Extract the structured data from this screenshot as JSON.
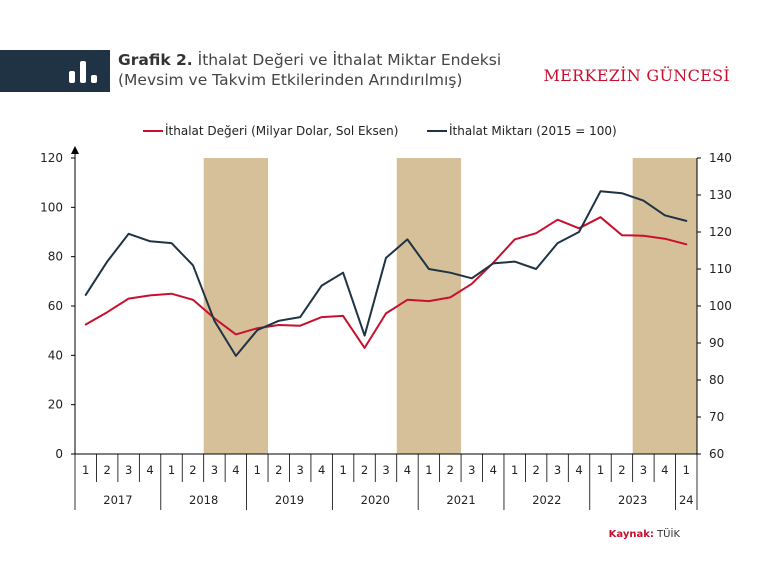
{
  "header": {
    "title_bold": "Grafik 2.",
    "title_line1": "İthalat Değeri ve İthalat Miktar Endeksi",
    "title_line2": "(Mevsim ve Takvim Etkilerinden Arındırılmış)",
    "brand": "MERKEZİN GÜNCESİ",
    "icon": "bar-chart-icon"
  },
  "source": {
    "label": "Kaynak:",
    "value": "TÜİK"
  },
  "colors": {
    "series1": "#c8102e",
    "series2": "#1f3344",
    "shade": "#d6c09a",
    "header_bg": "#1f3344"
  },
  "chart_data": {
    "type": "line",
    "title": "İthalat Değeri ve İthalat Miktar Endeksi",
    "x_quarters": [
      "1",
      "2",
      "3",
      "4",
      "1",
      "2",
      "3",
      "4",
      "1",
      "2",
      "3",
      "4",
      "1",
      "2",
      "3",
      "4",
      "1",
      "2",
      "3",
      "4",
      "1",
      "2",
      "3",
      "4",
      "1",
      "2",
      "3",
      "4",
      "1"
    ],
    "x_years": [
      {
        "label": "2017",
        "start": 0,
        "end": 3
      },
      {
        "label": "2018",
        "start": 4,
        "end": 7
      },
      {
        "label": "2019",
        "start": 8,
        "end": 11
      },
      {
        "label": "2020",
        "start": 12,
        "end": 15
      },
      {
        "label": "2021",
        "start": 16,
        "end": 19
      },
      {
        "label": "2022",
        "start": 20,
        "end": 23
      },
      {
        "label": "2023",
        "start": 24,
        "end": 27
      },
      {
        "label": "24",
        "start": 28,
        "end": 28
      }
    ],
    "shaded_ranges": [
      [
        6,
        9
      ],
      [
        15,
        18
      ],
      [
        26,
        29
      ]
    ],
    "left_axis": {
      "min": 0,
      "max": 120,
      "ticks": [
        "0",
        "20",
        "40",
        "60",
        "80",
        "100",
        "120"
      ]
    },
    "right_axis": {
      "min": 60,
      "max": 140,
      "ticks": [
        "60",
        "70",
        "80",
        "90",
        "100",
        "110",
        "120",
        "130",
        "140"
      ]
    },
    "series": [
      {
        "name": "İthalat Değeri (Milyar Dolar, Sol Eksen)",
        "axis": "left",
        "values": [
          52.5,
          57.5,
          63,
          64.3,
          65,
          62.5,
          55,
          48.5,
          51,
          52.3,
          52,
          55.5,
          56,
          43,
          57,
          62.5,
          62,
          63.5,
          69,
          77.5,
          87,
          89.5,
          95,
          91.5,
          96,
          88.7,
          88.5,
          87.3,
          85
        ]
      },
      {
        "name": "İthalat Miktarı (2015 = 100)",
        "axis": "right",
        "values": [
          103,
          112,
          119.5,
          117.5,
          117,
          111,
          96,
          86.5,
          93.5,
          96,
          97,
          105.5,
          109,
          92,
          113,
          118,
          110,
          109,
          107.5,
          111.5,
          112,
          110,
          117,
          120,
          131,
          130.5,
          128.5,
          124.5,
          123
        ]
      }
    ]
  }
}
